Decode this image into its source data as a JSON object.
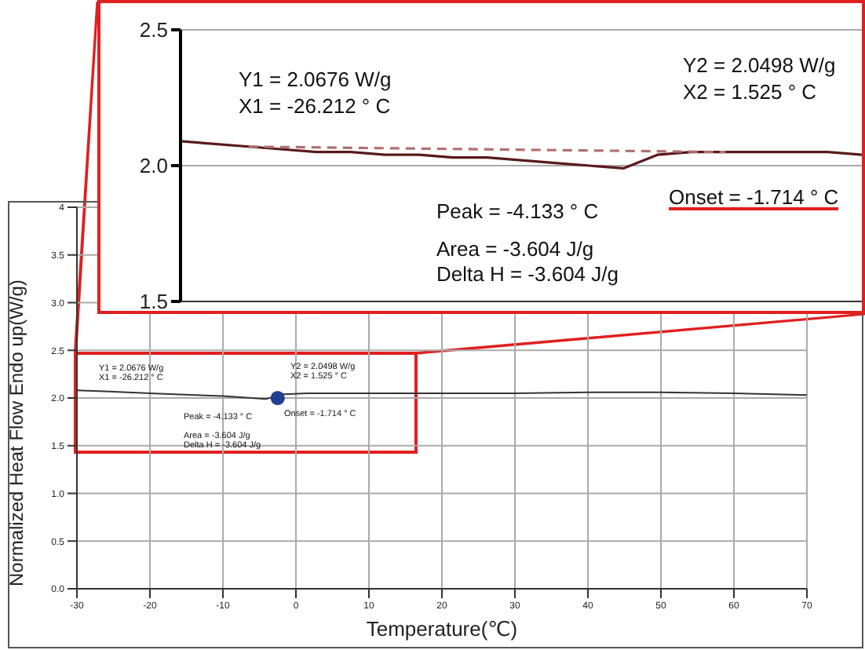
{
  "chart_data": [
    {
      "type": "line",
      "categories": [
        null,
        null,
        null,
        null,
        null,
        null,
        null,
        null,
        null,
        null,
        null,
        null,
        null,
        null,
        null,
        null,
        null,
        null,
        null,
        null,
        null
      ],
      "ylim": [
        1.5,
        2.5
      ],
      "yticks": [
        {
          "value": 1.5,
          "label": "1.5"
        },
        {
          "value": 2,
          "label": "2.0"
        },
        {
          "value": 2.5,
          "label": "2.5"
        }
      ],
      "tick_labels": "y",
      "grid": "y",
      "series": [
        {
          "color": "#5a1a1a",
          "values": [
            2.09,
            2.08,
            2.07,
            2.06,
            2.05,
            2.05,
            2.04,
            2.04,
            2.03,
            2.03,
            2.02,
            2.01,
            2.0,
            1.99,
            2.04,
            2.05,
            2.05,
            2.05,
            2.05,
            2.05,
            2.04
          ]
        },
        {
          "color": "#b07070",
          "line_style": "dashed",
          "values": [
            null,
            null,
            2.07,
            null,
            null,
            null,
            null,
            null,
            null,
            null,
            null,
            null,
            null,
            null,
            null,
            null,
            2.05,
            null,
            null,
            null,
            null
          ]
        }
      ],
      "annotations": [
        "Y1 = 2.0676 W/g",
        "X1 = -26.212 ° C",
        "Y2 = 2.0498 W/g",
        "X2 = 1.525 ° C",
        "Peak = -4.133 ° C",
        "Area = -3.604 J/g",
        "Delta H = -3.604 J/g",
        "Onset = -1.714 ° C"
      ]
    },
    {
      "type": "line",
      "xlabel": "Temperature(℃)",
      "ylabel": "Normalized  Heat Flow Endo up(W/g)",
      "xlim": [
        -30,
        70
      ],
      "xticks": [
        -30,
        -20,
        -10,
        0,
        10,
        20,
        30,
        40,
        50,
        60,
        70
      ],
      "ylim": [
        0,
        4
      ],
      "yticks": [
        {
          "value": 0,
          "label": "0.0"
        },
        {
          "value": 0.5,
          "label": "0.5"
        },
        {
          "value": 1,
          "label": "1.0"
        },
        {
          "value": 1.5,
          "label": "1.5"
        },
        {
          "value": 2,
          "label": "2.0"
        },
        {
          "value": 2.5,
          "label": "2.5"
        },
        {
          "value": 3,
          "label": "3.0"
        },
        {
          "value": 3.5,
          "label": "3.5"
        },
        4
      ],
      "grid": true,
      "series": [
        {
          "color": "#333333",
          "x": [
            -30,
            -26.212,
            -20,
            -10,
            -4.133,
            -1.7,
            1.525,
            10,
            20,
            30,
            40,
            50,
            60,
            70
          ],
          "values": [
            2.08,
            2.07,
            2.05,
            2.02,
            1.99,
            2.04,
            2.05,
            2.05,
            2.05,
            2.05,
            2.06,
            2.06,
            2.05,
            2.03
          ]
        },
        {
          "type": "scatter",
          "marker": "circle",
          "color": "#1f3f8f",
          "x": [
            -2.5
          ],
          "values": [
            2.0
          ]
        }
      ],
      "annotations": [
        "Y1 = 2.0676 W/g",
        "X1 = -26.212 ° C",
        "Y2 = 2.0498 W/g",
        "X2 = 1.525 ° C",
        "Peak = -4.133 ° C",
        "Area = -3.604 J/g",
        "Delta H = -3.604 J/g",
        "Onset = -1.714 ° C"
      ]
    }
  ]
}
